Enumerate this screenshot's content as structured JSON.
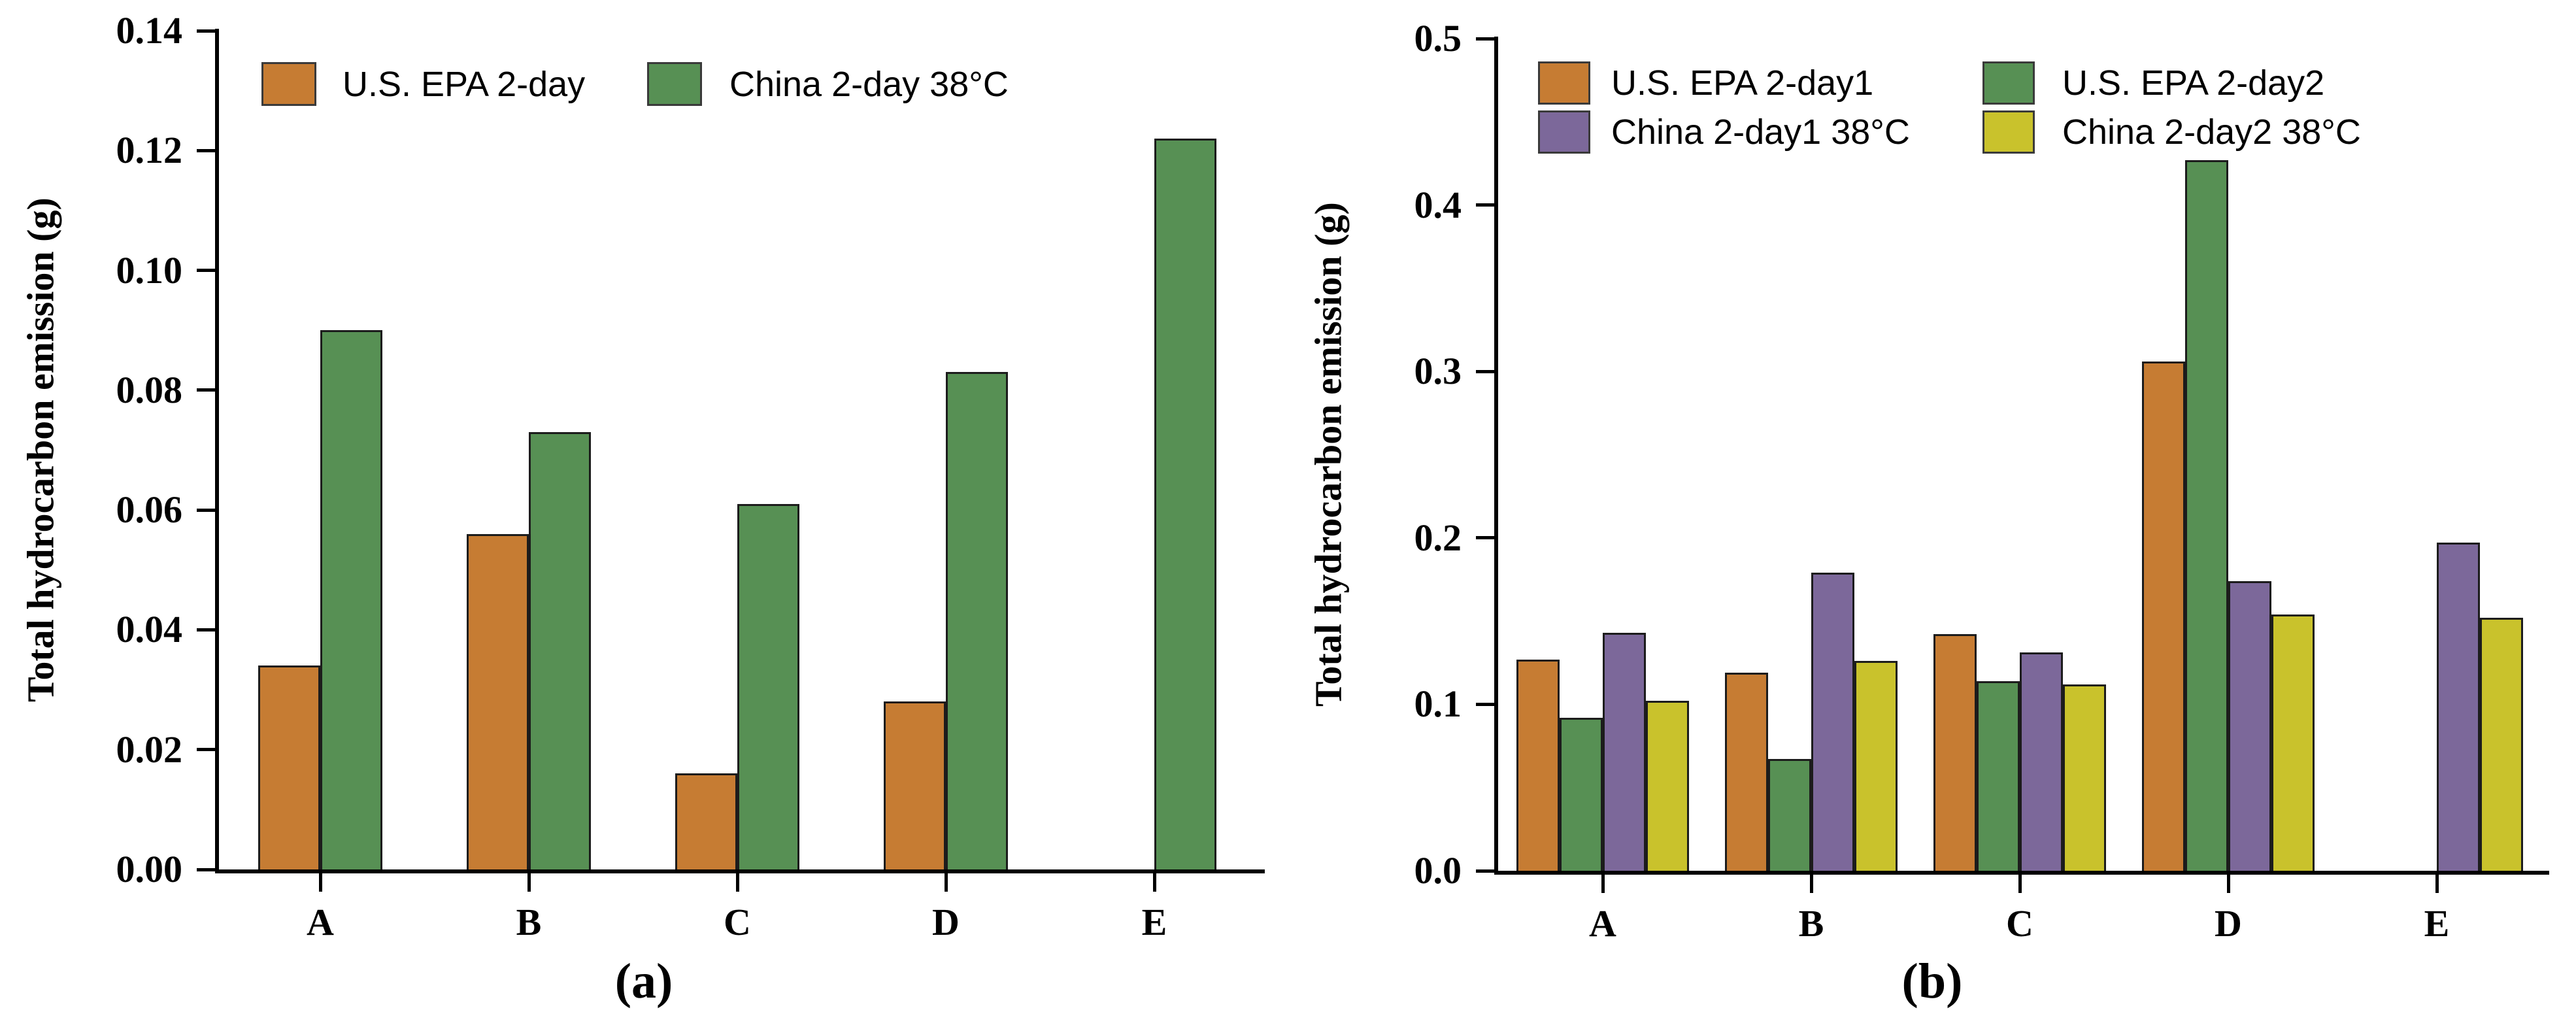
{
  "figure": {
    "description": "Two grouped bar charts comparing total hydrocarbon emissions under U.S. EPA and China test procedures for motorcycles A-E",
    "background_color": "#ffffff",
    "axis_color": "#000000",
    "bar_border_color": "#1c1c1c"
  },
  "chart_data": [
    {
      "id": "a",
      "type": "bar",
      "title": "(a)",
      "xlabel": "",
      "ylabel": "Total hydrocarbon emission (g)",
      "categories": [
        "A",
        "B",
        "C",
        "D",
        "E"
      ],
      "series": [
        {
          "name": "U.S. EPA 2-day",
          "color": "#C67C33",
          "values": [
            0.034,
            0.056,
            0.016,
            0.028,
            0
          ]
        },
        {
          "name": "China 2-day 38°C",
          "color": "#579054",
          "values": [
            0.09,
            0.073,
            0.061,
            0.083,
            0.122
          ]
        }
      ],
      "ylim": [
        0,
        0.14
      ],
      "ytick_step": 0.02,
      "yticks": [
        "0.00",
        "0.02",
        "0.04",
        "0.06",
        "0.08",
        "0.10",
        "0.12",
        "0.14"
      ],
      "grid": false,
      "legend_position": "top-left-inside",
      "legend_rows": 1
    },
    {
      "id": "b",
      "type": "bar",
      "title": "(b)",
      "xlabel": "",
      "ylabel": "Total hydrocarbon emission (g)",
      "categories": [
        "A",
        "B",
        "C",
        "D",
        "E"
      ],
      "series": [
        {
          "name": "U.S. EPA 2-day1",
          "color": "#C67C33",
          "values": [
            0.127,
            0.119,
            0.142,
            0.306,
            0
          ]
        },
        {
          "name": "U.S. EPA 2-day2",
          "color": "#579054",
          "values": [
            0.092,
            0.067,
            0.114,
            0.427,
            0
          ]
        },
        {
          "name": "China 2-day1 38°C",
          "color": "#7C689A",
          "values": [
            0.143,
            0.179,
            0.131,
            0.174,
            0.197
          ]
        },
        {
          "name": "China 2-day2 38°C",
          "color": "#C9C22C",
          "values": [
            0.102,
            0.126,
            0.112,
            0.154,
            0.152
          ]
        }
      ],
      "ylim": [
        0,
        0.5
      ],
      "ytick_step": 0.1,
      "yticks": [
        "0.0",
        "0.1",
        "0.2",
        "0.3",
        "0.4",
        "0.5"
      ],
      "grid": false,
      "legend_position": "top-left-inside",
      "legend_rows": 2,
      "legend_column_series_order": [
        [
          0,
          2
        ],
        [
          1,
          3
        ]
      ]
    }
  ]
}
